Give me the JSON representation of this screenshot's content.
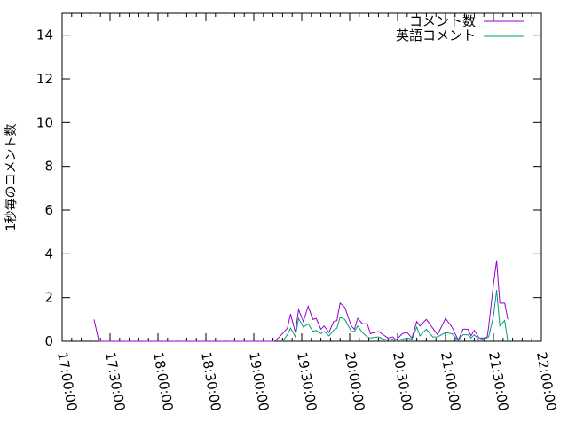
{
  "chart_data": {
    "type": "line",
    "title": "",
    "xlabel": "",
    "ylabel": "1秒毎のコメント数",
    "xlim": [
      "17:00:00",
      "22:00:00"
    ],
    "ylim": [
      0,
      15
    ],
    "x_ticks": [
      "17:00:00",
      "17:30:00",
      "18:00:00",
      "18:30:00",
      "19:00:00",
      "19:30:00",
      "20:00:00",
      "20:30:00",
      "21:00:00",
      "21:30:00",
      "22:00:00"
    ],
    "y_ticks": [
      0,
      2,
      4,
      6,
      8,
      10,
      12,
      14
    ],
    "grid": false,
    "legend_position": "top-right",
    "series": [
      {
        "name": "コメント数",
        "color": "#9400d3",
        "x": [
          "17:20",
          "17:23",
          "19:13",
          "19:16",
          "19:21",
          "19:23",
          "19:26",
          "19:28",
          "19:31",
          "19:34",
          "19:37",
          "19:39",
          "19:42",
          "19:44",
          "19:47",
          "19:50",
          "19:52",
          "19:54",
          "19:57",
          "20:01",
          "20:03",
          "20:05",
          "20:08",
          "20:11",
          "20:13",
          "20:18",
          "20:21",
          "20:24",
          "20:27",
          "20:29",
          "20:33",
          "20:36",
          "20:39",
          "20:42",
          "20:44",
          "20:48",
          "20:52",
          "20:55",
          "21:00",
          "21:04",
          "21:08",
          "21:11",
          "21:14",
          "21:16",
          "21:18",
          "21:21",
          "21:26",
          "21:27",
          "21:30",
          "21:32",
          "21:34",
          "21:37",
          "21:39"
        ],
        "values": [
          1.0,
          0,
          0,
          0.2,
          0.6,
          1.25,
          0.4,
          1.45,
          0.9,
          1.6,
          1.0,
          1.05,
          0.55,
          0.7,
          0.4,
          0.9,
          0.95,
          1.75,
          1.55,
          0.7,
          0.55,
          1.05,
          0.8,
          0.8,
          0.35,
          0.45,
          0.3,
          0.15,
          0.2,
          0.05,
          0.35,
          0.4,
          0.15,
          0.9,
          0.7,
          1.0,
          0.6,
          0.3,
          1.05,
          0.65,
          0.05,
          0.55,
          0.55,
          0.25,
          0.5,
          0.15,
          0.15,
          0.65,
          2.6,
          3.7,
          1.75,
          1.75,
          1.0
        ]
      },
      {
        "name": "英語コメント",
        "color": "#009e73",
        "x": [
          "19:18",
          "19:21",
          "19:23",
          "19:26",
          "19:28",
          "19:31",
          "19:34",
          "19:37",
          "19:39",
          "19:42",
          "19:44",
          "19:47",
          "19:50",
          "19:52",
          "19:54",
          "19:57",
          "20:01",
          "20:03",
          "20:05",
          "20:08",
          "20:11",
          "20:13",
          "20:18",
          "20:21",
          "20:24",
          "20:27",
          "20:29",
          "20:33",
          "20:36",
          "20:39",
          "20:42",
          "20:44",
          "20:48",
          "20:52",
          "20:55",
          "21:00",
          "21:04",
          "21:08",
          "21:11",
          "21:14",
          "21:16",
          "21:18",
          "21:21",
          "21:26",
          "21:27",
          "21:30",
          "21:32",
          "21:34",
          "21:37",
          "21:39"
        ],
        "values": [
          0,
          0.3,
          0.6,
          0.2,
          1.05,
          0.65,
          0.8,
          0.45,
          0.5,
          0.35,
          0.45,
          0.25,
          0.5,
          0.6,
          1.1,
          1.0,
          0.45,
          0.45,
          0.7,
          0.4,
          0.2,
          0.15,
          0.2,
          0.1,
          0.05,
          0.1,
          0,
          0.1,
          0.15,
          0.1,
          0.65,
          0.25,
          0.55,
          0.2,
          0.2,
          0.4,
          0.35,
          0.05,
          0.3,
          0.3,
          0.15,
          0.3,
          0.05,
          0.2,
          0.2,
          1.15,
          2.35,
          0.7,
          0.95,
          0
        ]
      }
    ]
  }
}
